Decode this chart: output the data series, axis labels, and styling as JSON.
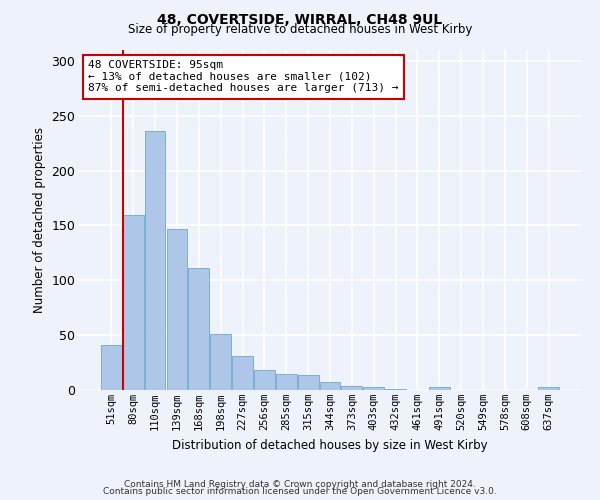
{
  "title1": "48, COVERTSIDE, WIRRAL, CH48 9UL",
  "title2": "Size of property relative to detached houses in West Kirby",
  "xlabel": "Distribution of detached houses by size in West Kirby",
  "ylabel": "Number of detached properties",
  "categories": [
    "51sqm",
    "80sqm",
    "110sqm",
    "139sqm",
    "168sqm",
    "198sqm",
    "227sqm",
    "256sqm",
    "285sqm",
    "315sqm",
    "344sqm",
    "373sqm",
    "403sqm",
    "432sqm",
    "461sqm",
    "491sqm",
    "520sqm",
    "549sqm",
    "578sqm",
    "608sqm",
    "637sqm"
  ],
  "values": [
    41,
    160,
    236,
    147,
    111,
    51,
    31,
    18,
    15,
    14,
    7,
    4,
    3,
    1,
    0,
    3,
    0,
    0,
    0,
    0,
    3
  ],
  "bar_color": "#aec6e8",
  "bar_edge_color": "#5a9ec8",
  "annotation_text": "48 COVERTSIDE: 95sqm\n← 13% of detached houses are smaller (102)\n87% of semi-detached houses are larger (713) →",
  "annotation_box_color": "#ffffff",
  "annotation_box_edge_color": "#cc0000",
  "vline_color": "#cc0000",
  "footer1": "Contains HM Land Registry data © Crown copyright and database right 2024.",
  "footer2": "Contains public sector information licensed under the Open Government Licence v3.0.",
  "background_color": "#eef2fb",
  "ylim": [
    0,
    310
  ],
  "yticks": [
    0,
    50,
    100,
    150,
    200,
    250,
    300
  ]
}
